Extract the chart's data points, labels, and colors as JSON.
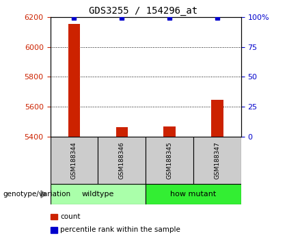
{
  "title": "GDS3255 / 154296_at",
  "samples": [
    "GSM188344",
    "GSM188346",
    "GSM188345",
    "GSM188347"
  ],
  "counts": [
    6155,
    5463,
    5468,
    5645
  ],
  "percentiles": [
    99.5,
    99.5,
    99.5,
    99.5
  ],
  "ylim_left": [
    5400,
    6200
  ],
  "ylim_right": [
    0,
    100
  ],
  "yticks_left": [
    5400,
    5600,
    5800,
    6000,
    6200
  ],
  "yticks_right": [
    0,
    25,
    50,
    75,
    100
  ],
  "ytick_right_labels": [
    "0",
    "25",
    "50",
    "75",
    "100%"
  ],
  "groups": [
    {
      "label": "wildtype",
      "samples": [
        0,
        1
      ],
      "color": "#aaffaa"
    },
    {
      "label": "how mutant",
      "samples": [
        2,
        3
      ],
      "color": "#33ee33"
    }
  ],
  "bar_color": "#cc2200",
  "percentile_color": "#0000cc",
  "sample_box_color": "#cccccc",
  "background_color": "#ffffff",
  "title_fontsize": 10,
  "axis_label_color_left": "#cc2200",
  "axis_label_color_right": "#0000cc",
  "legend_items": [
    {
      "label": "count",
      "color": "#cc2200"
    },
    {
      "label": "percentile rank within the sample",
      "color": "#0000cc"
    }
  ],
  "genotype_label": "genotype/variation",
  "bar_width": 0.25
}
